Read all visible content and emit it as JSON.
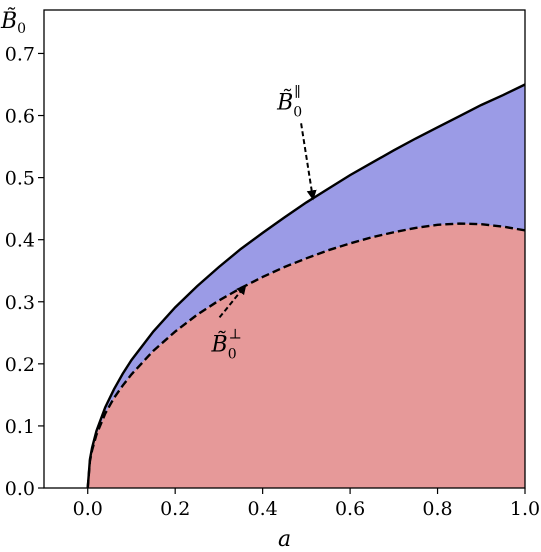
{
  "chart_data": {
    "type": "area",
    "title": "",
    "xlabel": "a",
    "ylabel": "B̃",
    "ylabel_sub": "0",
    "xlim": [
      -0.1,
      1.0
    ],
    "ylim": [
      0.0,
      0.77
    ],
    "x_ticks": [
      "0.0",
      "0.2",
      "0.4",
      "0.6",
      "0.8",
      "1.0"
    ],
    "y_ticks": [
      "0.0",
      "0.1",
      "0.2",
      "0.3",
      "0.4",
      "0.5",
      "0.6",
      "0.7"
    ],
    "grid": false,
    "series": [
      {
        "name": "B̃0∥",
        "style": "solid",
        "fill": "#9b9be6",
        "x": [
          0,
          0.005,
          0.01,
          0.02,
          0.04,
          0.06,
          0.08,
          0.1,
          0.15,
          0.2,
          0.25,
          0.3,
          0.35,
          0.4,
          0.45,
          0.5,
          0.55,
          0.6,
          0.65,
          0.7,
          0.75,
          0.8,
          0.85,
          0.9,
          0.95,
          1.0
        ],
        "values": [
          0,
          0.046,
          0.065,
          0.092,
          0.13,
          0.159,
          0.184,
          0.206,
          0.252,
          0.291,
          0.325,
          0.356,
          0.385,
          0.411,
          0.436,
          0.46,
          0.482,
          0.504,
          0.524,
          0.544,
          0.563,
          0.581,
          0.599,
          0.617,
          0.633,
          0.65
        ]
      },
      {
        "name": "B̃0⊥",
        "style": "dashed",
        "fill": "#e69999",
        "x": [
          0,
          0.005,
          0.01,
          0.02,
          0.04,
          0.06,
          0.08,
          0.1,
          0.15,
          0.2,
          0.25,
          0.3,
          0.35,
          0.4,
          0.45,
          0.5,
          0.55,
          0.6,
          0.65,
          0.7,
          0.75,
          0.8,
          0.85,
          0.9,
          0.95,
          1.0
        ],
        "values": [
          0,
          0.043,
          0.061,
          0.086,
          0.12,
          0.145,
          0.165,
          0.183,
          0.221,
          0.252,
          0.279,
          0.302,
          0.322,
          0.34,
          0.356,
          0.37,
          0.383,
          0.394,
          0.404,
          0.412,
          0.419,
          0.424,
          0.426,
          0.425,
          0.421,
          0.415
        ]
      }
    ],
    "annotations": [
      {
        "text": "B̃",
        "sup": "∥",
        "sub": "0",
        "target_series": 0,
        "target_x": 0.515,
        "text_x": 0.52,
        "text_y": 0.61
      },
      {
        "text": "B̃",
        "sup": "⊥",
        "sub": "0",
        "target_series": 1,
        "target_x": 0.36,
        "text_x": 0.37,
        "text_y": 0.22
      }
    ]
  }
}
